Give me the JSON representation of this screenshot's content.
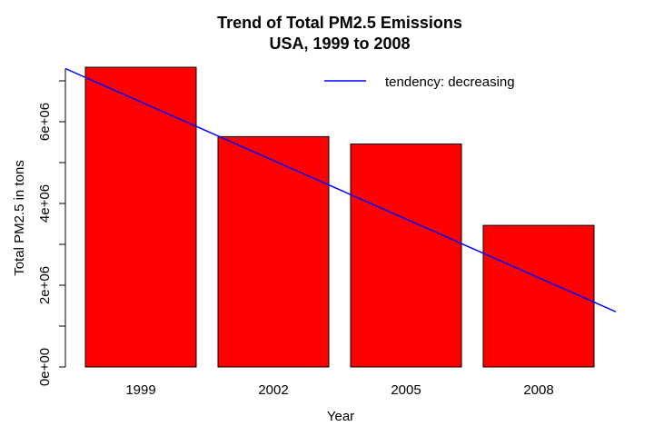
{
  "chart_data": {
    "type": "bar",
    "title_line1": "Trend of Total PM2.5 Emissions",
    "title_line2": "USA, 1999 to 2008",
    "xlabel": "Year",
    "ylabel": "Total PM2.5 in tons",
    "categories": [
      "1999",
      "2002",
      "2005",
      "2008"
    ],
    "values": [
      7332967,
      5635780,
      5454703,
      3464206
    ],
    "ylim": [
      0,
      7300000
    ],
    "yticks": [
      0,
      2000000,
      4000000,
      6000000
    ],
    "ytick_labels": [
      "0e+00",
      "2e+06",
      "4e+06",
      "6e+06"
    ],
    "bar_color": "#ff0000",
    "trend_line": {
      "label": "tendency: decreasing",
      "color": "#0000ff",
      "start_value": 7300000,
      "end_value": 1350000
    },
    "legend_position": "top-right"
  }
}
